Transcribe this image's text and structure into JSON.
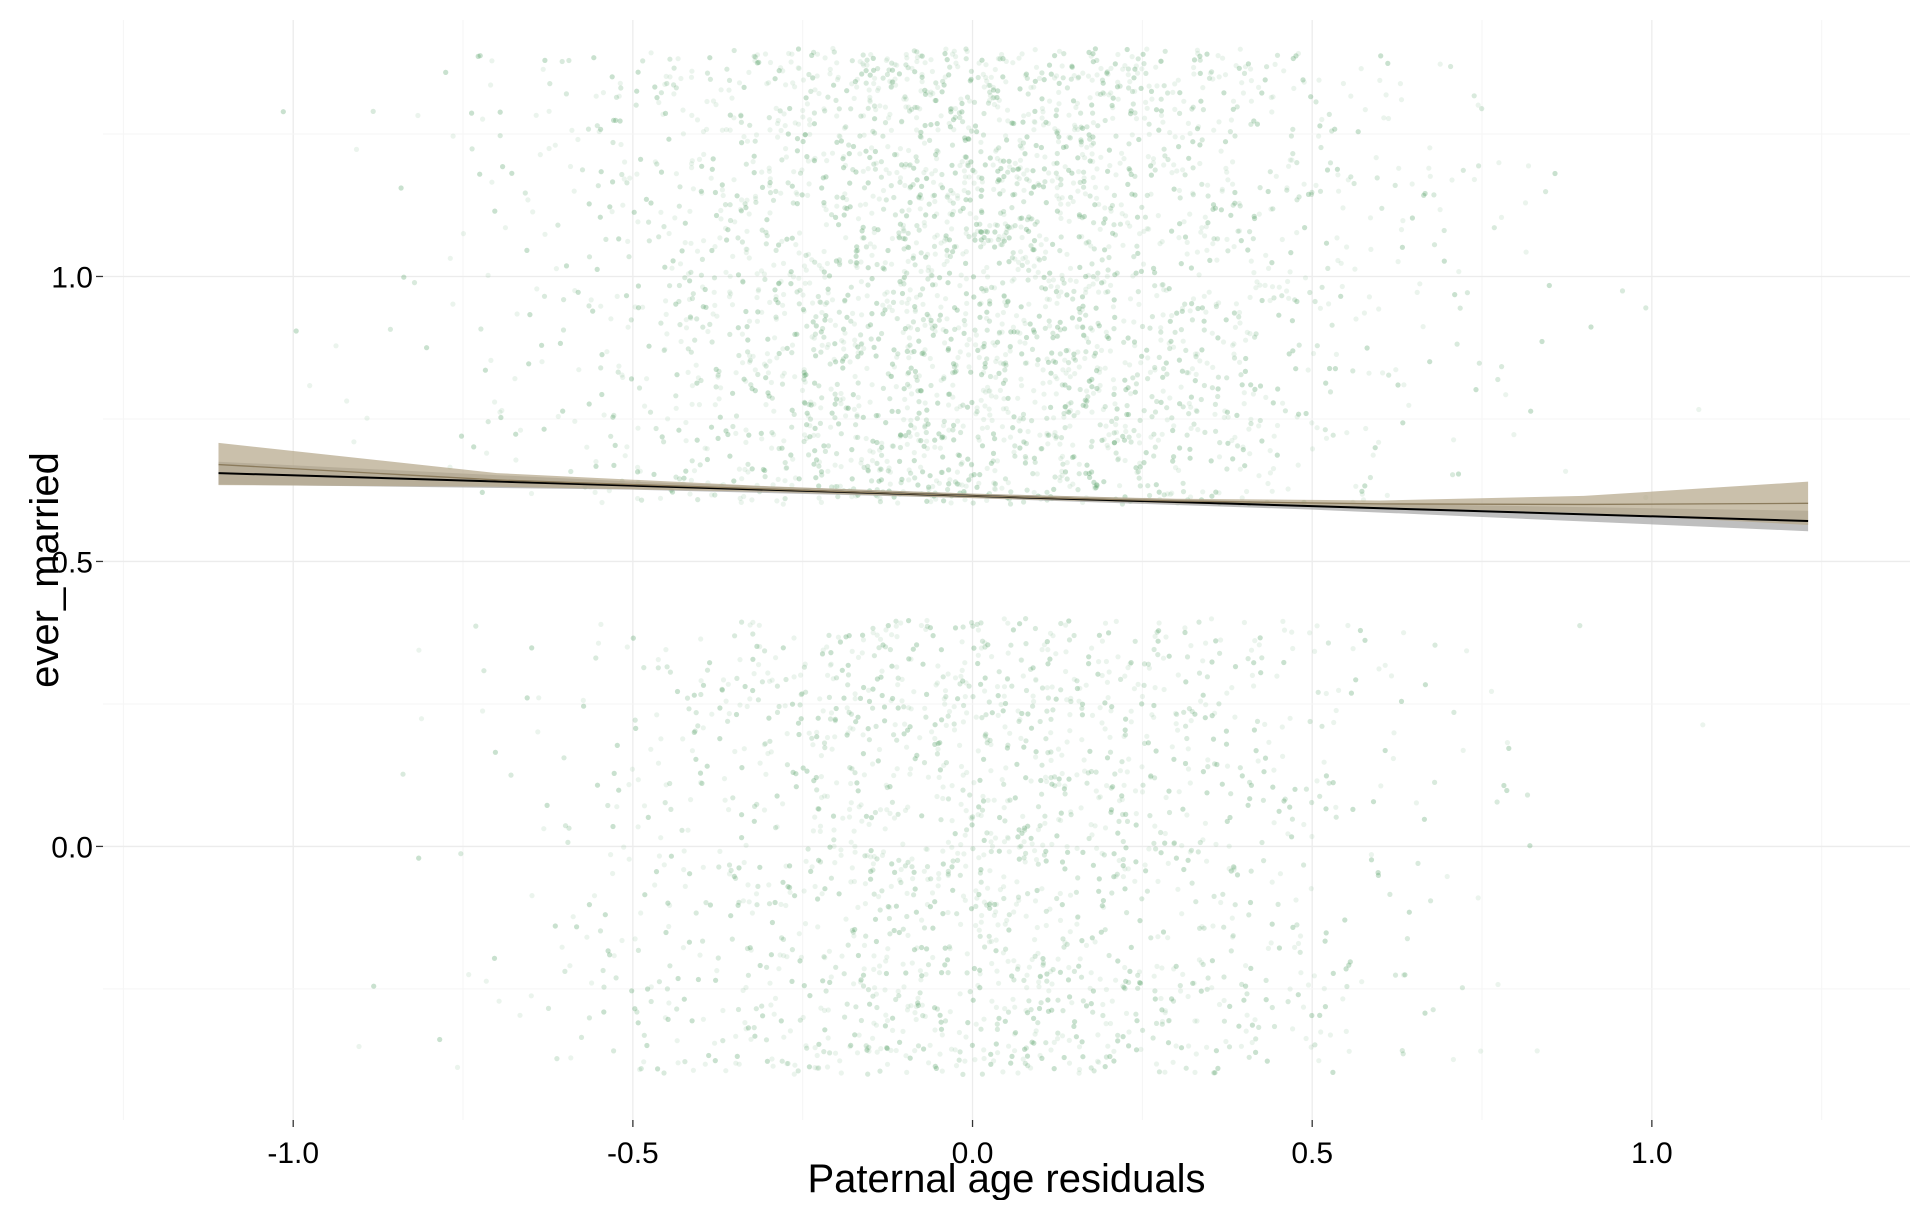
{
  "chart_data": {
    "type": "scatter",
    "title": "",
    "xlabel": "Paternal age residuals",
    "ylabel": "ever_married",
    "xlim": [
      -1.28,
      1.38
    ],
    "ylim": [
      -0.48,
      1.45
    ],
    "x_ticks": [
      -1.0,
      -0.5,
      0.0,
      0.5,
      1.0
    ],
    "x_tick_labels": [
      "-1.0",
      "-0.5",
      "0.0",
      "0.5",
      "1.0"
    ],
    "y_ticks": [
      0.0,
      0.5,
      1.0
    ],
    "y_tick_labels": [
      "0.0",
      "0.5",
      "1.0"
    ],
    "grid": true,
    "legend": "none",
    "points": {
      "description": "jittered binary outcome, thousands of semi-transparent points",
      "count_approx": 30000,
      "color": "#5aa86b",
      "opacity": 0.12,
      "x_center": 0.0,
      "x_sd": 0.3,
      "x_range": [
        -1.15,
        1.25
      ],
      "group_bands": [
        {
          "y_value": 0,
          "jitter_range": [
            -0.4,
            0.4
          ]
        },
        {
          "y_value": 1,
          "jitter_range": [
            0.6,
            1.4
          ]
        }
      ],
      "group_share_y1": 0.61
    },
    "series": [
      {
        "type": "line",
        "color": "#000000",
        "x": [
          -1.11,
          -0.5,
          0.0,
          0.5,
          1.23
        ],
        "y": [
          0.655,
          0.633,
          0.615,
          0.597,
          0.571
        ],
        "ci_lower": [
          0.635,
          0.626,
          0.611,
          0.591,
          0.553
        ],
        "ci_upper": [
          0.675,
          0.64,
          0.619,
          0.603,
          0.589
        ],
        "ci_color": "#a6a6a6"
      },
      {
        "type": "line",
        "color": "#8b7b5c",
        "x": [
          -1.11,
          -0.7,
          -0.3,
          0.0,
          0.3,
          0.6,
          0.9,
          1.23
        ],
        "y": [
          0.67,
          0.643,
          0.627,
          0.615,
          0.606,
          0.601,
          0.6,
          0.602
        ],
        "ci_lower": [
          0.634,
          0.631,
          0.622,
          0.611,
          0.602,
          0.595,
          0.585,
          0.564
        ],
        "ci_upper": [
          0.708,
          0.655,
          0.632,
          0.619,
          0.61,
          0.607,
          0.615,
          0.64
        ],
        "ci_color": "#b5a78a"
      }
    ]
  }
}
